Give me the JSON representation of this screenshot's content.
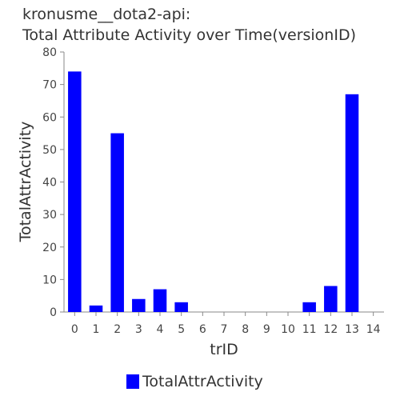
{
  "chart_data": {
    "type": "bar",
    "title_line1": "kronusme__dota2-api:",
    "title_line2": "Total Attribute Activity over Time(versionID)",
    "xlabel": "trID",
    "ylabel": "TotalAttrActivity",
    "categories": [
      "0",
      "1",
      "2",
      "3",
      "4",
      "5",
      "6",
      "7",
      "8",
      "9",
      "10",
      "11",
      "12",
      "13",
      "14"
    ],
    "series": [
      {
        "name": "TotalAttrActivity",
        "color": "#0000ff",
        "values": [
          74,
          2,
          55,
          4,
          7,
          3,
          0,
          0,
          0,
          0,
          0,
          3,
          8,
          67,
          0
        ]
      }
    ],
    "ylim": [
      0,
      80
    ],
    "yticks": [
      0,
      10,
      20,
      30,
      40,
      50,
      60,
      70,
      80
    ],
    "grid": false,
    "legend_position": "bottom"
  }
}
